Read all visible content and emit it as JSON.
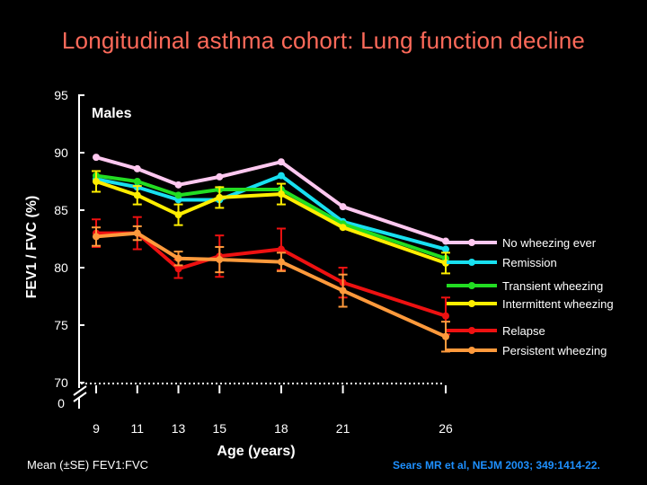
{
  "title": "Longitudinal asthma cohort: Lung function decline",
  "footnote": "Mean (±SE) FEV1:FVC",
  "citation": "Sears MR et al, NEJM 2003; 349:1414-22.",
  "chart_data": {
    "type": "line",
    "subtitle": "Males",
    "xlabel": "Age (years)",
    "ylabel": "FEV1 / FVC (%)",
    "ylim": [
      70,
      95
    ],
    "y_ticks": [
      "95",
      "90",
      "85",
      "80",
      "75",
      "70"
    ],
    "y_zero_label": "0",
    "x": [
      9,
      11,
      13,
      15,
      18,
      21,
      26
    ],
    "x_ticks": [
      "9",
      "11",
      "13",
      "15",
      "18",
      "21",
      "26"
    ],
    "legend_position": "right",
    "series": [
      {
        "name": "No wheezing ever",
        "color": "#ffc8f0",
        "values": [
          89.6,
          88.6,
          87.2,
          87.9,
          89.2,
          85.3,
          82.3
        ]
      },
      {
        "name": "Remission",
        "color": "#18e0f0",
        "values": [
          87.7,
          87.0,
          85.9,
          85.9,
          88.0,
          84.0,
          81.6
        ]
      },
      {
        "name": "Transient wheezing",
        "color": "#22dd22",
        "values": [
          88.0,
          87.5,
          86.3,
          86.8,
          86.8,
          83.8,
          80.8
        ]
      },
      {
        "name": "Intermittent wheezing",
        "color": "#ffee00",
        "values": [
          87.5,
          86.3,
          84.6,
          86.1,
          86.4,
          83.5,
          80.4
        ],
        "errors": [
          0.9,
          0.8,
          0.9,
          0.9,
          0.9,
          0,
          0.9
        ]
      },
      {
        "name": "Relapse",
        "color": "#ee1111",
        "values": [
          83.0,
          83.0,
          79.9,
          81.0,
          81.6,
          78.7,
          75.8
        ],
        "errors": [
          1.2,
          1.4,
          0.8,
          1.8,
          1.8,
          1.3,
          1.6
        ]
      },
      {
        "name": "Persistent wheezing",
        "color": "#ff9a3c",
        "values": [
          82.7,
          83.0,
          80.8,
          80.7,
          80.5,
          78.0,
          74.0
        ],
        "errors": [
          0.8,
          0.6,
          0.6,
          1.1,
          0.8,
          1.4,
          1.3
        ]
      }
    ]
  }
}
